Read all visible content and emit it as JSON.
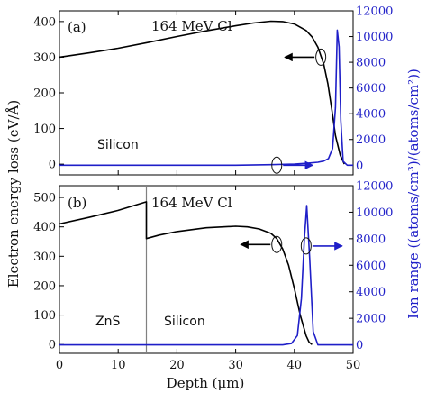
{
  "colors": {
    "energy": "#000000",
    "ion": "#1f1fc8",
    "frame": "#000000",
    "boundary": "#808080"
  },
  "axes": {
    "ylabel_left": "Electron energy loss (eV/Å)",
    "ylabel_right": "Ion range ((atoms/cm³)/(atoms/cm²))",
    "xlabel": "Depth (μm)"
  },
  "chart_data": [
    {
      "type": "line",
      "panel": "(a)",
      "annotation": "164 MeV Cl",
      "material_labels": [
        "Silicon"
      ],
      "xlim": [
        0,
        50
      ],
      "ylim_left": [
        -30,
        430
      ],
      "ylim_right": [
        -750,
        12000
      ],
      "left_ticks": [
        0,
        100,
        200,
        300,
        400
      ],
      "right_ticks": [
        0,
        2000,
        4000,
        6000,
        8000,
        10000,
        12000
      ],
      "series": [
        {
          "axis": "left",
          "x": [
            0,
            5,
            10,
            15,
            20,
            25,
            30,
            33,
            36,
            38,
            40,
            42,
            43,
            44,
            45,
            45.7,
            46.4,
            47,
            47.8,
            48.5
          ],
          "y": [
            300,
            312,
            325,
            341,
            358,
            374,
            388,
            396,
            401,
            400,
            393,
            375,
            357,
            328,
            280,
            225,
            150,
            80,
            25,
            0
          ]
        },
        {
          "axis": "right",
          "x": [
            0,
            10,
            20,
            30,
            36,
            40,
            42,
            44,
            45,
            45.8,
            46.5,
            47,
            47.3,
            47.6,
            47.9,
            48.3,
            49,
            50
          ],
          "y": [
            0,
            0,
            0,
            0,
            40,
            90,
            150,
            230,
            320,
            520,
            1300,
            4500,
            10500,
            9200,
            3500,
            300,
            0,
            0
          ]
        }
      ],
      "markers": [
        {
          "x": 44.5,
          "y": 300,
          "axis": "left",
          "arrow": "left"
        },
        {
          "x": 37.0,
          "y": 0,
          "axis": "right",
          "arrow": "right"
        }
      ]
    },
    {
      "type": "line",
      "panel": "(b)",
      "annotation": "164 MeV Cl",
      "material_labels": [
        "ZnS",
        "Silicon"
      ],
      "boundary_x": 14.8,
      "xlim": [
        0,
        50
      ],
      "x_ticks": [
        0,
        10,
        20,
        30,
        40,
        50
      ],
      "ylim_left": [
        -30,
        540
      ],
      "ylim_right": [
        -640,
        12000
      ],
      "left_ticks": [
        0,
        100,
        200,
        300,
        400,
        500
      ],
      "right_ticks": [
        0,
        2000,
        4000,
        6000,
        8000,
        10000,
        12000
      ],
      "series": [
        {
          "axis": "left",
          "x": [
            0,
            5,
            10,
            14.8,
            14.8,
            17,
            20,
            25,
            30,
            32,
            34,
            36,
            37,
            38,
            39,
            40,
            41,
            42,
            42.5,
            43
          ],
          "y": [
            410,
            432,
            456,
            485,
            360,
            372,
            384,
            397,
            402,
            400,
            393,
            378,
            360,
            325,
            270,
            190,
            100,
            30,
            8,
            0
          ]
        },
        {
          "axis": "right",
          "x": [
            0,
            10,
            20,
            30,
            38,
            39.5,
            40.5,
            41.2,
            41.7,
            42.1,
            42.6,
            43.2,
            44,
            50
          ],
          "y": [
            0,
            0,
            0,
            0,
            0,
            100,
            700,
            3500,
            8000,
            10500,
            6500,
            1000,
            0,
            0
          ]
        }
      ],
      "markers": [
        {
          "x": 37.0,
          "y": 340,
          "axis": "left",
          "arrow": "left"
        },
        {
          "x": 42.0,
          "y": 335,
          "axis": "left",
          "arrow": "right"
        }
      ]
    }
  ]
}
